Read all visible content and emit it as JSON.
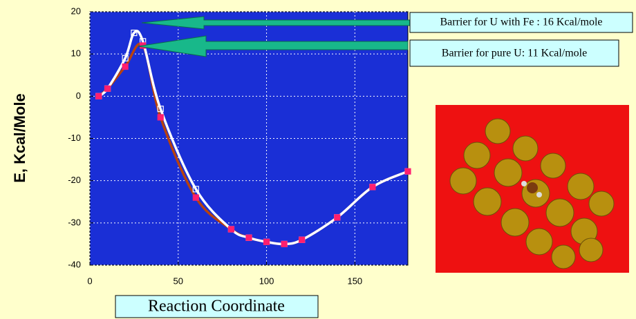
{
  "chart_data": {
    "type": "line",
    "y_label": "E, Kcal/Mole",
    "x_label": "Reaction Coordinate",
    "annotations": [
      "Barrier for U with Fe : 16 Kcal/mole",
      "Barrier for pure U: 11 Kcal/mole"
    ],
    "xlim": [
      0,
      180
    ],
    "xticks": [
      0,
      50,
      100,
      150
    ],
    "ylim": [
      -40,
      20
    ],
    "yticks": [
      -40,
      -30,
      -20,
      -10,
      0,
      10,
      20
    ],
    "grid": true,
    "plot_color": "#1a2fd6",
    "series": [
      {
        "color": "#ffffff",
        "marker": "hollow-square",
        "x": [
          5,
          10,
          20,
          25,
          30,
          40,
          60,
          80,
          90,
          100,
          110,
          120,
          140,
          160,
          180
        ],
        "values": [
          0,
          1.8,
          9,
          15,
          13,
          -3,
          -22,
          -31.5,
          -33.5,
          -34.5,
          -35,
          -34,
          -28.7,
          -21.5,
          -17.8
        ]
      },
      {
        "color": "#b8420e",
        "marker": "square",
        "marker_color": "#ff1f6e",
        "x": [
          5,
          10,
          20,
          30,
          40,
          60,
          80,
          90,
          100,
          110,
          120,
          140,
          160,
          180
        ],
        "values": [
          0,
          1.8,
          7,
          12,
          -5,
          -24,
          -31.5,
          -33.5,
          -34.5,
          -35,
          -34,
          -28.7,
          -21.5,
          -17.8
        ]
      }
    ]
  }
}
